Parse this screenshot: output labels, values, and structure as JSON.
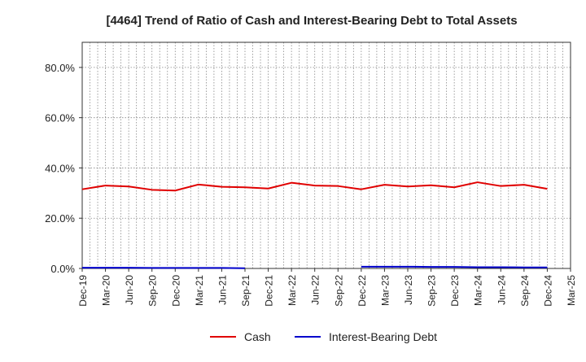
{
  "chart_data": {
    "type": "line",
    "title": "[4464]  Trend of Ratio of Cash and Interest-Bearing Debt to Total Assets",
    "xlabel": "",
    "ylabel": "",
    "ylim": [
      0,
      90
    ],
    "y_ticks": [
      0,
      20,
      40,
      60,
      80
    ],
    "y_tick_labels": [
      "0.0%",
      "20.0%",
      "40.0%",
      "60.0%",
      "80.0%"
    ],
    "x_tick_labels": [
      "Dec-19",
      "Mar-20",
      "Jun-20",
      "Sep-20",
      "Dec-20",
      "Mar-21",
      "Jun-21",
      "Sep-21",
      "Dec-21",
      "Mar-22",
      "Jun-22",
      "Sep-22",
      "Dec-22",
      "Mar-23",
      "Jun-23",
      "Sep-23",
      "Dec-23",
      "Mar-24",
      "Jun-24",
      "Sep-24",
      "Dec-24",
      "Mar-25"
    ],
    "grid": true,
    "legend_position": "bottom",
    "series": [
      {
        "name": "Cash",
        "color": "#e00000",
        "values": [
          31.5,
          33.0,
          32.6,
          31.3,
          31.0,
          33.4,
          32.5,
          32.3,
          31.8,
          34.1,
          33.0,
          32.8,
          31.5,
          33.3,
          32.6,
          33.1,
          32.3,
          34.3,
          32.8,
          33.3,
          31.7,
          null
        ]
      },
      {
        "name": "Interest-Bearing Debt",
        "color": "#0000cc",
        "values": [
          0.3,
          0.3,
          0.3,
          0.2,
          0.2,
          0.2,
          0.2,
          0.1,
          null,
          null,
          null,
          null,
          0.7,
          0.7,
          0.7,
          0.6,
          0.6,
          0.5,
          0.5,
          0.4,
          0.4,
          null
        ]
      }
    ]
  }
}
